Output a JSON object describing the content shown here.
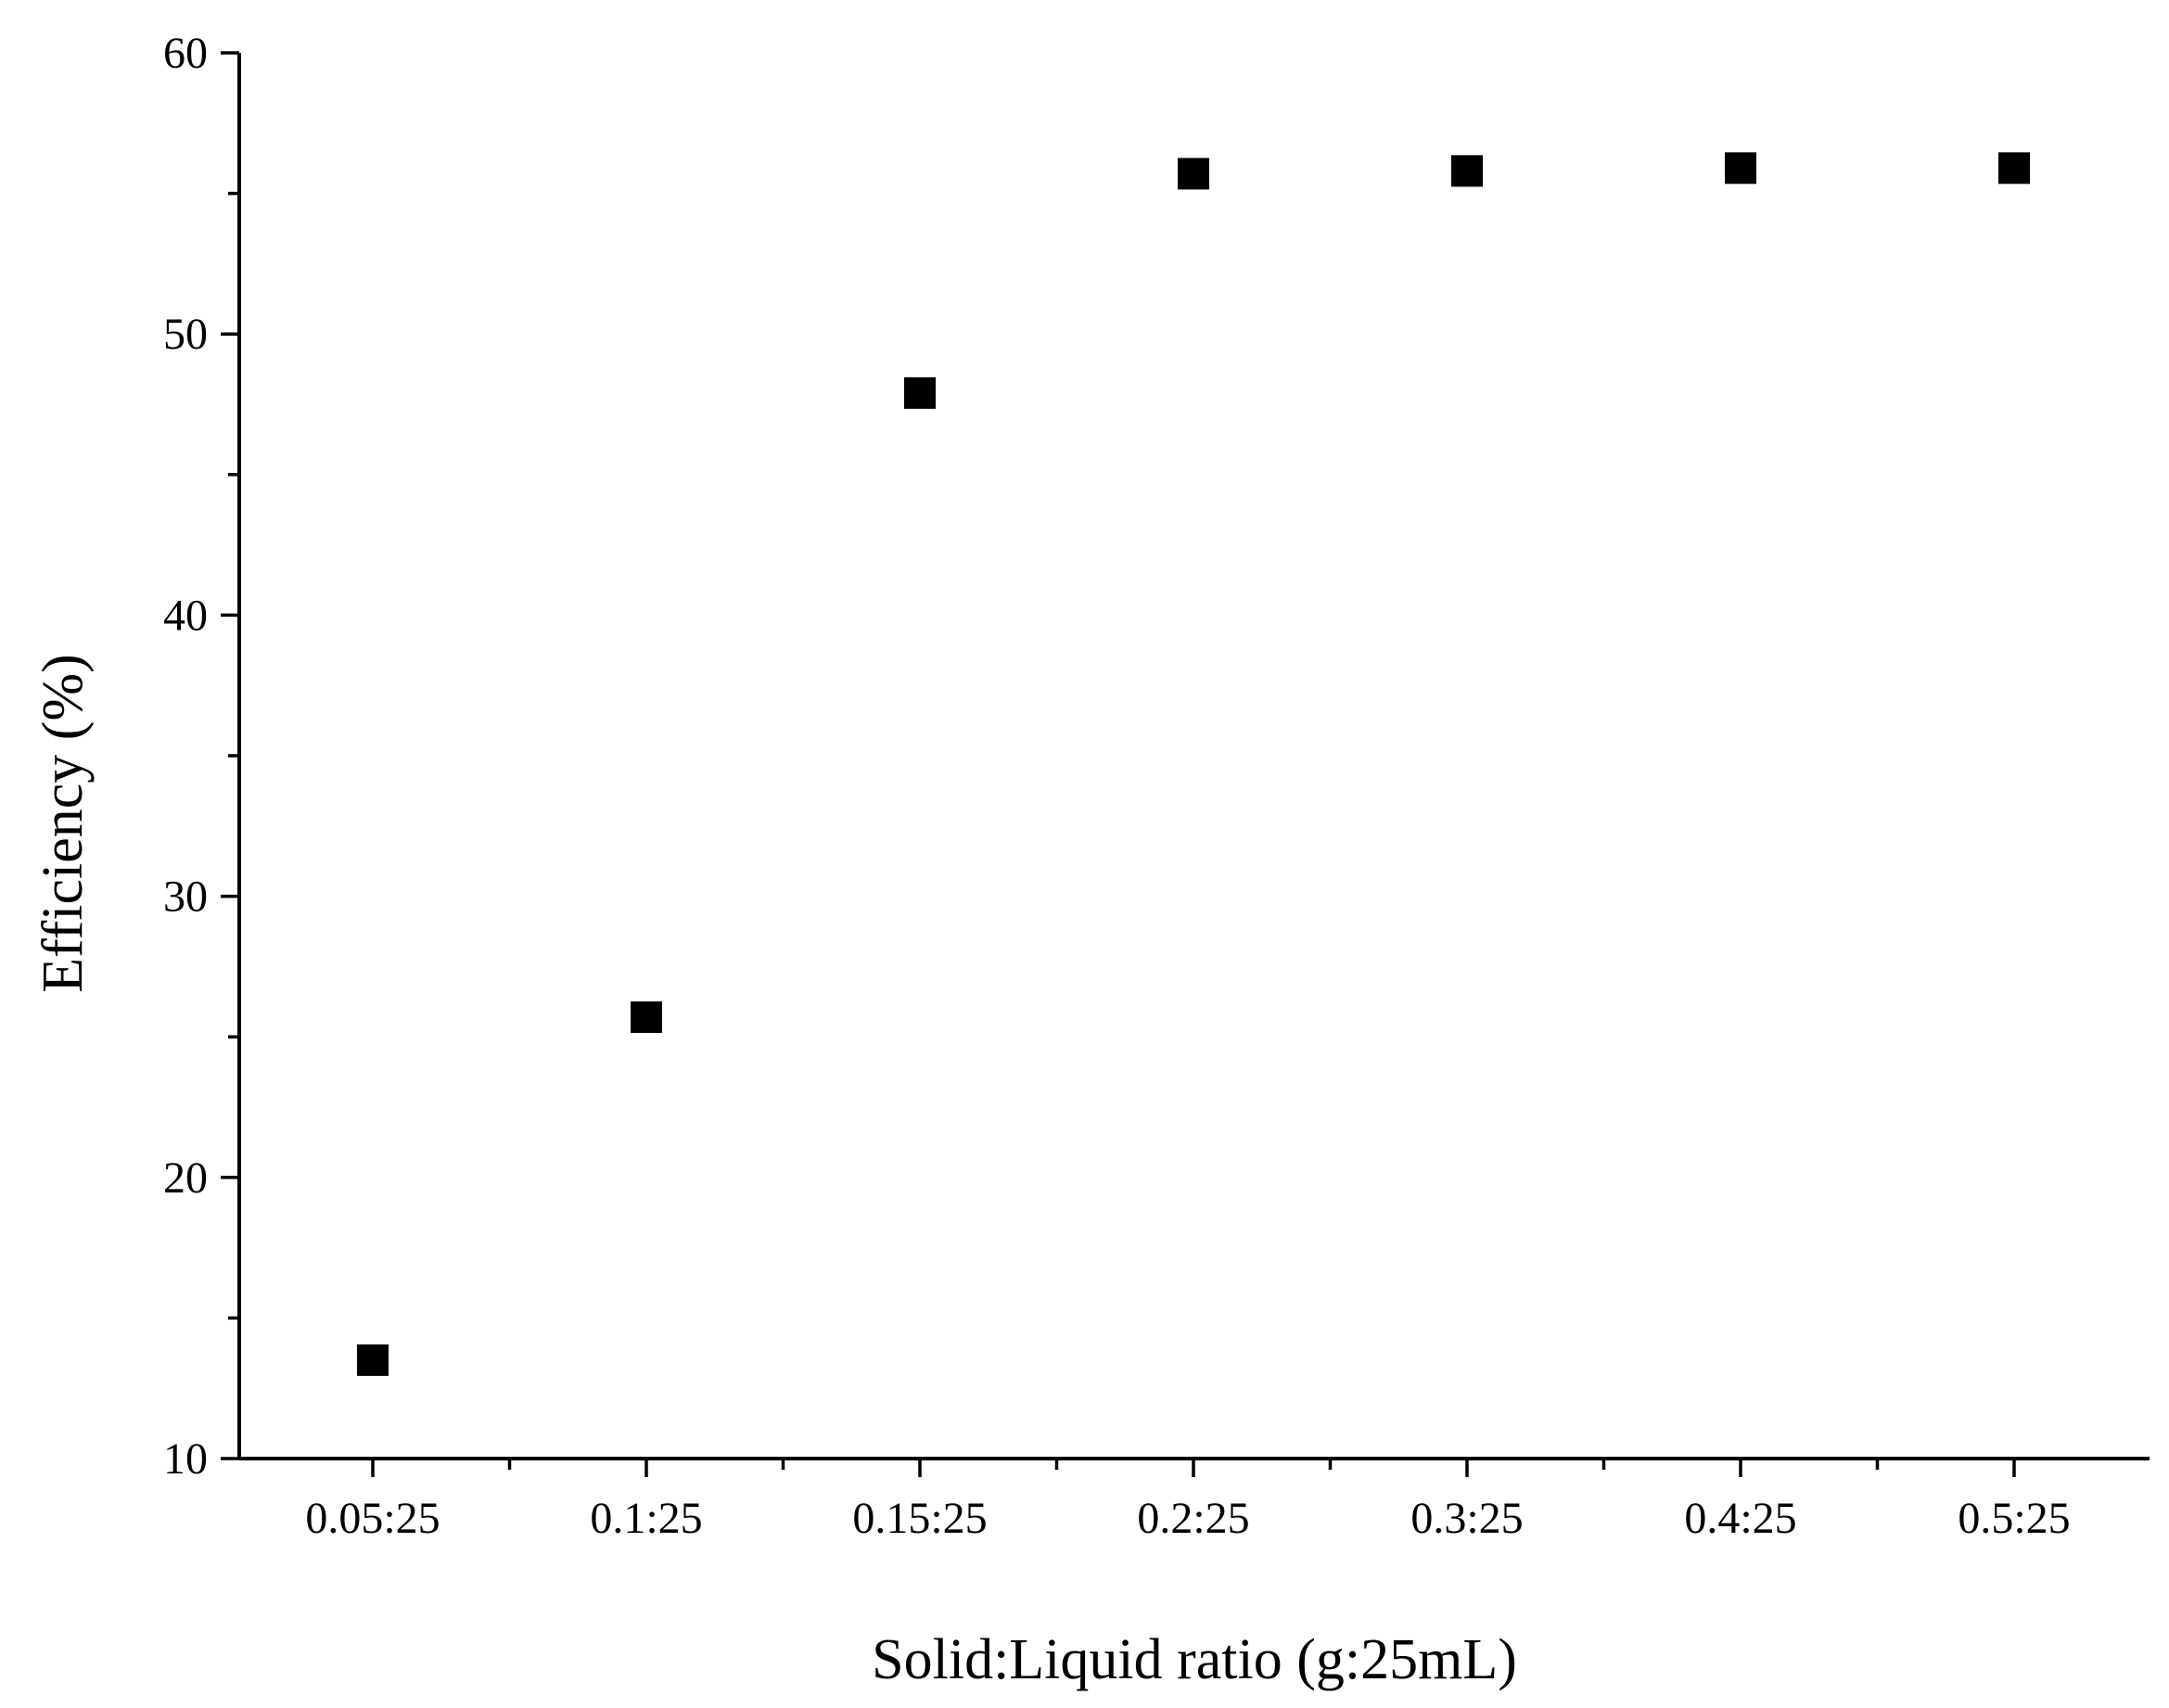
{
  "chart_data": {
    "type": "scatter",
    "title": "",
    "xlabel": "Solid:Liquid ratio (g:25mL)",
    "ylabel": "Efficiency (%)",
    "categories": [
      "0.05:25",
      "0.1:25",
      "0.15:25",
      "0.2:25",
      "0.3:25",
      "0.4:25",
      "0.5:25"
    ],
    "series": [
      {
        "values": [
          13.5,
          25.7,
          47.9,
          55.7,
          55.8,
          55.9,
          55.9
        ],
        "marker": "square",
        "color": "#000000"
      }
    ],
    "ylim": [
      10,
      60
    ],
    "yticks": [
      "10",
      "20",
      "30",
      "40",
      "50",
      "60"
    ],
    "grid": false,
    "legend": "none"
  }
}
